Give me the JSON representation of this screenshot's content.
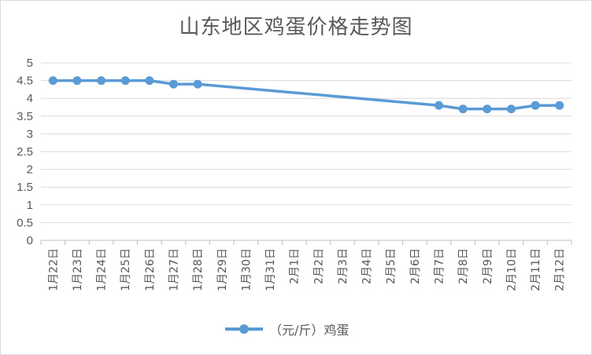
{
  "chart_data": {
    "type": "line",
    "title": "山东地区鸡蛋价格走势图",
    "categories": [
      "1月22日",
      "1月23日",
      "1月24日",
      "1月25日",
      "1月26日",
      "1月27日",
      "1月28日",
      "1月29日",
      "1月30日",
      "1月31日",
      "2月1日",
      "2月2日",
      "2月3日",
      "2月4日",
      "2月5日",
      "2月6日",
      "2月7日",
      "2月8日",
      "2月9日",
      "2月10日",
      "2月11日",
      "2月12日"
    ],
    "series": [
      {
        "name": "（元/斤）鸡蛋",
        "color": "#5b9bd5",
        "values": [
          4.5,
          4.5,
          4.5,
          4.5,
          4.5,
          4.4,
          4.4,
          null,
          null,
          null,
          null,
          null,
          null,
          null,
          null,
          null,
          3.8,
          3.7,
          3.7,
          3.7,
          3.8,
          3.8
        ]
      }
    ],
    "ylim": [
      0,
      5
    ],
    "yticks": [
      "0",
      "0.5",
      "1",
      "1.5",
      "2",
      "2.5",
      "3",
      "3.5",
      "4",
      "4.5",
      "5"
    ],
    "grid": true,
    "legend": "bottom"
  }
}
